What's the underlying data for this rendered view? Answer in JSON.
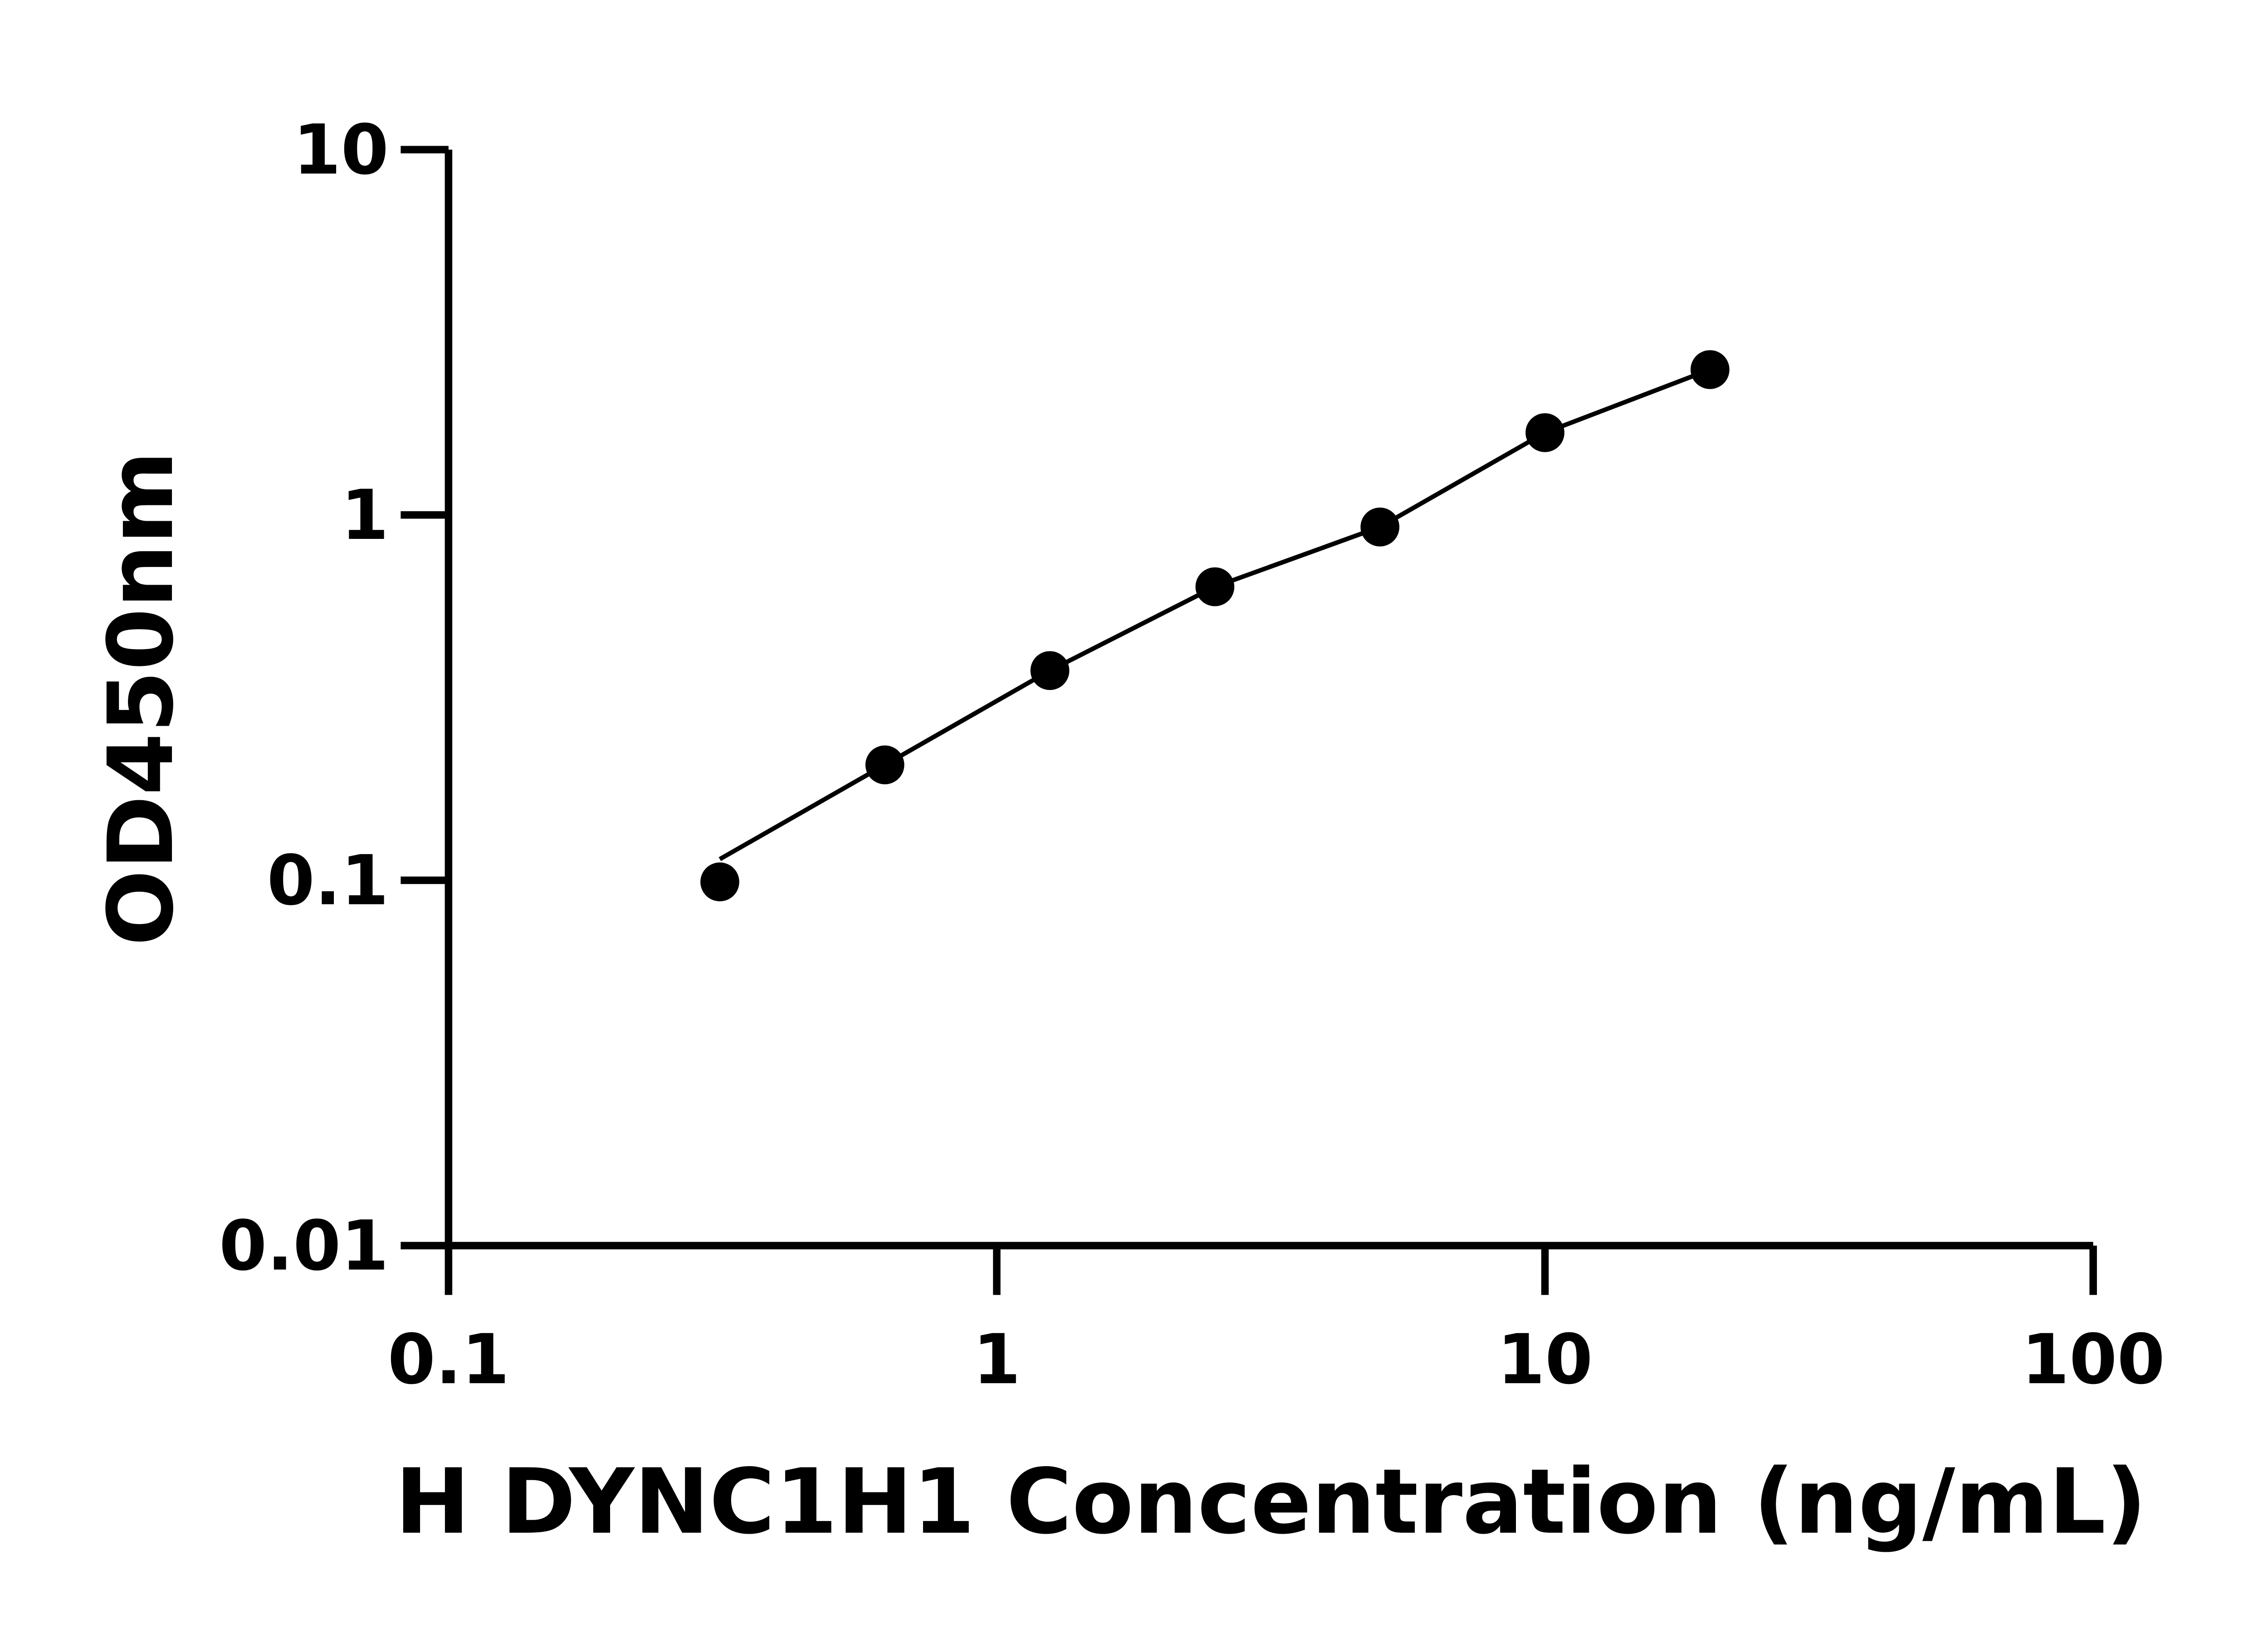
{
  "chart_data": {
    "type": "scatter",
    "title": "",
    "xlabel": "H DYNC1H1 Concentration (ng/mL)",
    "ylabel": "OD450nm",
    "x_scale": "log",
    "y_scale": "log",
    "xlim": [
      0.1,
      100
    ],
    "ylim": [
      0.01,
      10
    ],
    "x_ticks": [
      "0.1",
      "1",
      "10",
      "100"
    ],
    "y_ticks": [
      "0.01",
      "0.1",
      "1",
      "10"
    ],
    "grid": false,
    "legend": "none",
    "fit_line": true,
    "marker_color": "#000000",
    "line_color": "#000000",
    "points": [
      {
        "x": 0.3125,
        "y": 0.099
      },
      {
        "x": 0.625,
        "y": 0.207
      },
      {
        "x": 1.25,
        "y": 0.375
      },
      {
        "x": 2.5,
        "y": 0.636
      },
      {
        "x": 5,
        "y": 0.927
      },
      {
        "x": 10,
        "y": 1.68
      },
      {
        "x": 20,
        "y": 2.5
      }
    ]
  }
}
